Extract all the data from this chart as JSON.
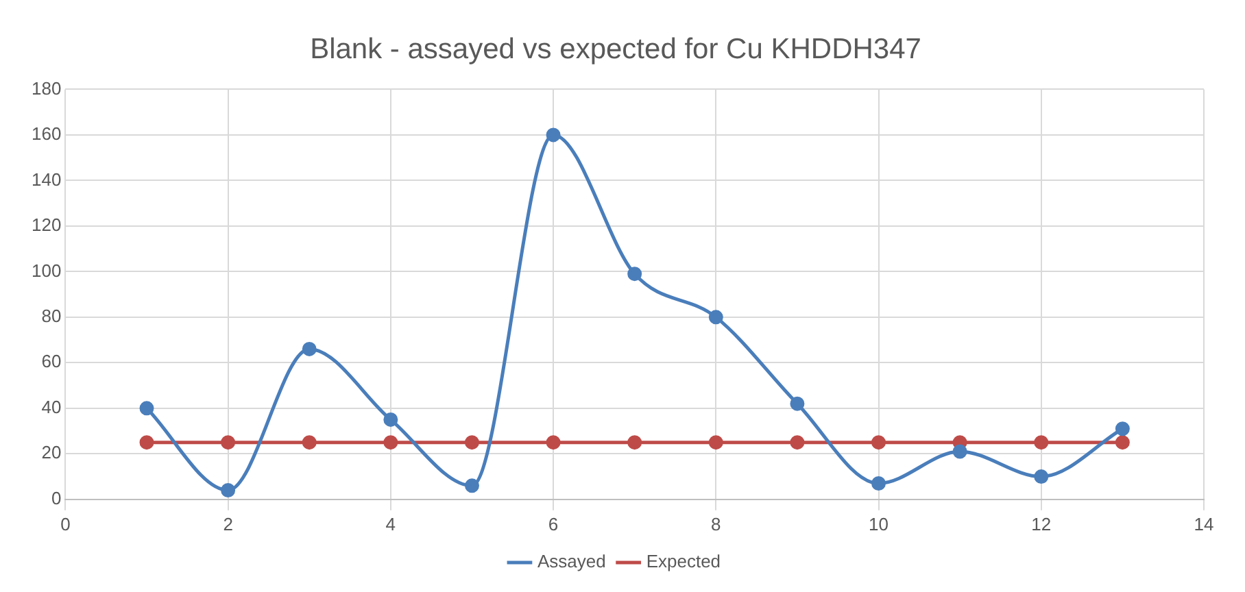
{
  "chart_data": {
    "type": "line",
    "title": "Blank - assayed vs expected for Cu KHDDH347",
    "x": [
      1,
      2,
      3,
      4,
      5,
      6,
      7,
      8,
      9,
      10,
      11,
      12,
      13
    ],
    "series": [
      {
        "name": "Assayed",
        "color": "#4a7ebb",
        "values": [
          40,
          4,
          66,
          35,
          6,
          160,
          99,
          80,
          42,
          7,
          21,
          10,
          31
        ]
      },
      {
        "name": "Expected",
        "color": "#be4b48",
        "values": [
          25,
          25,
          25,
          25,
          25,
          25,
          25,
          25,
          25,
          25,
          25,
          25,
          25
        ]
      }
    ],
    "xlim": [
      0,
      14
    ],
    "xticks": [
      0,
      2,
      4,
      6,
      8,
      10,
      12,
      14
    ],
    "ylim": [
      0,
      180
    ],
    "yticks": [
      0,
      20,
      40,
      60,
      80,
      100,
      120,
      140,
      160,
      180
    ],
    "grid": true,
    "legend": "bottom",
    "marker": "circle",
    "line_style": "solid"
  }
}
